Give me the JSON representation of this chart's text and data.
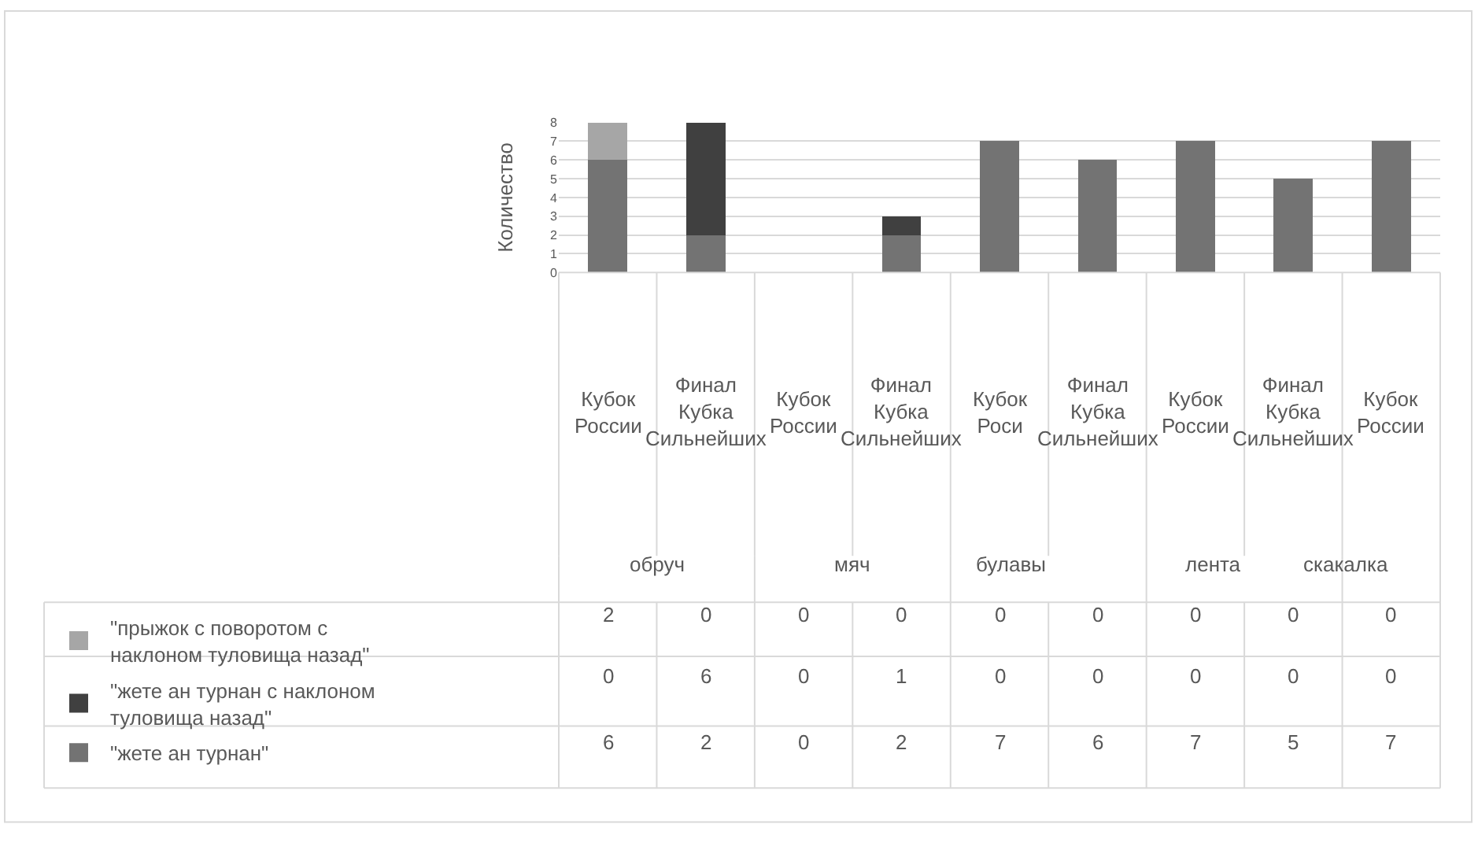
{
  "chart_data": {
    "type": "bar",
    "stacked": true,
    "ylabel": "Количество",
    "categories": [
      "Кубок России",
      "Финал Кубка Сильнейших",
      "Кубок России",
      "Финал Кубка Сильнейших",
      "Кубок Роси",
      "Финал Кубка Сильнейших",
      "Кубок России",
      "Финал Кубка Сильнейших",
      "Кубок России"
    ],
    "annotations": [
      "обруч",
      "мяч",
      "булавы",
      "лента",
      "скакалка"
    ],
    "series": [
      {
        "name": "\"жете ан турнан\"",
        "color": "#737373",
        "values": [
          6,
          2,
          0,
          2,
          7,
          6,
          7,
          5,
          7
        ]
      },
      {
        "name": "\"жете ан турнан с наклоном туловища назад\"",
        "color": "#404040",
        "values": [
          0,
          6,
          0,
          1,
          0,
          0,
          0,
          0,
          0
        ]
      },
      {
        "name": "\"прыжок с поворотом с наклоном туловища назад\"",
        "color": "#a6a6a6",
        "values": [
          2,
          0,
          0,
          0,
          0,
          0,
          0,
          0,
          0
        ]
      }
    ],
    "ylim": [
      0,
      8
    ],
    "yticks": [
      0,
      1,
      2,
      3,
      4,
      5,
      6,
      7,
      8
    ],
    "grid": "y",
    "legend": "bottom",
    "data_labels": true
  }
}
